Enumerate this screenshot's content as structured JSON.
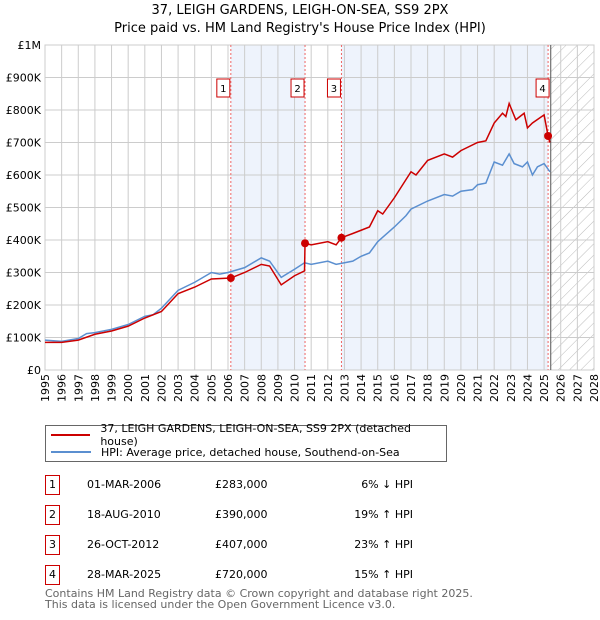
{
  "chart_data": {
    "type": "line",
    "title": "37, LEIGH GARDENS, LEIGH-ON-SEA, SS9 2PX",
    "subtitle": "Price paid vs. HM Land Registry's House Price Index (HPI)",
    "xlim": [
      1995,
      2028
    ],
    "ylim": [
      0,
      1000000
    ],
    "x_ticks": [
      "1995",
      "1996",
      "1997",
      "1998",
      "1999",
      "2000",
      "2001",
      "2002",
      "2003",
      "2004",
      "2005",
      "2006",
      "2007",
      "2008",
      "2009",
      "2010",
      "2011",
      "2012",
      "2013",
      "2014",
      "2015",
      "2016",
      "2017",
      "2018",
      "2019",
      "2020",
      "2021",
      "2022",
      "2023",
      "2024",
      "2025",
      "2026",
      "2027",
      "2028"
    ],
    "y_ticks": [
      {
        "v": 0,
        "label": "£0"
      },
      {
        "v": 100000,
        "label": "£100K"
      },
      {
        "v": 200000,
        "label": "£200K"
      },
      {
        "v": 300000,
        "label": "£300K"
      },
      {
        "v": 400000,
        "label": "£400K"
      },
      {
        "v": 500000,
        "label": "£500K"
      },
      {
        "v": 600000,
        "label": "£600K"
      },
      {
        "v": 700000,
        "label": "£700K"
      },
      {
        "v": 800000,
        "label": "£800K"
      },
      {
        "v": 900000,
        "label": "£900K"
      },
      {
        "v": 1000000,
        "label": "£1M"
      }
    ],
    "grid": true,
    "series": [
      {
        "name": "37, LEIGH GARDENS, LEIGH-ON-SEA, SS9 2PX (detached house)",
        "color": "#cc0000",
        "x": [
          1995,
          1996,
          1997,
          1998,
          1999,
          2000,
          2001,
          2002,
          2003,
          2004,
          2005,
          2006.17,
          2007,
          2008,
          2008.5,
          2009.2,
          2010,
          2010.6,
          2010.63,
          2011,
          2012,
          2012.5,
          2012.82,
          2013.5,
          2014,
          2014.5,
          2015,
          2015.3,
          2016,
          2016.5,
          2017,
          2017.3,
          2018,
          2019,
          2019.5,
          2020,
          2021,
          2021.5,
          2022,
          2022.5,
          2022.7,
          2022.9,
          2023.3,
          2023.8,
          2024,
          2024.3,
          2025,
          2025.24,
          2025.35
        ],
        "y": [
          85000,
          85000,
          92000,
          110000,
          120000,
          135000,
          160000,
          180000,
          235000,
          255000,
          280000,
          283000,
          300000,
          325000,
          320000,
          262000,
          290000,
          305000,
          390000,
          385000,
          395000,
          385000,
          407000,
          420000,
          430000,
          440000,
          490000,
          480000,
          530000,
          570000,
          610000,
          600000,
          645000,
          665000,
          655000,
          675000,
          700000,
          705000,
          760000,
          790000,
          780000,
          820000,
          770000,
          790000,
          745000,
          760000,
          785000,
          720000,
          700000
        ]
      },
      {
        "name": "HPI: Average price, detached house, Southend-on-Sea",
        "color": "#5b8fd0",
        "x": [
          1995,
          1996,
          1997,
          1997.5,
          1998,
          1999,
          2000,
          2001,
          2001.5,
          2002,
          2003,
          2004,
          2005,
          2005.5,
          2006,
          2007,
          2008,
          2008.5,
          2009.2,
          2010,
          2010.6,
          2011,
          2012,
          2012.5,
          2013,
          2013.5,
          2014,
          2014.5,
          2015,
          2016,
          2016.7,
          2017,
          2018,
          2019,
          2019.5,
          2020,
          2020.7,
          2021,
          2021.5,
          2022,
          2022.5,
          2022.9,
          2023.2,
          2023.7,
          2024,
          2024.3,
          2024.6,
          2025,
          2025.35
        ],
        "y": [
          92000,
          88000,
          97000,
          112000,
          115000,
          125000,
          140000,
          165000,
          170000,
          190000,
          245000,
          270000,
          300000,
          295000,
          300000,
          315000,
          345000,
          335000,
          285000,
          310000,
          330000,
          325000,
          335000,
          325000,
          330000,
          335000,
          350000,
          360000,
          395000,
          440000,
          475000,
          495000,
          520000,
          540000,
          535000,
          550000,
          555000,
          570000,
          575000,
          640000,
          630000,
          665000,
          635000,
          625000,
          640000,
          600000,
          625000,
          635000,
          610000
        ]
      }
    ],
    "sales": [
      {
        "n": "1",
        "x": 2006.17,
        "y": 283000
      },
      {
        "n": "2",
        "x": 2010.63,
        "y": 390000
      },
      {
        "n": "3",
        "x": 2012.82,
        "y": 407000
      },
      {
        "n": "4",
        "x": 2025.24,
        "y": 720000
      }
    ],
    "shaded_ranges": [
      [
        2006.17,
        2010.63
      ],
      [
        2012.82,
        2025.24
      ]
    ],
    "forecast_hatch_from": 2025.4,
    "legend": "below"
  },
  "table": [
    {
      "n": "1",
      "date": "01-MAR-2006",
      "price": "£283,000",
      "hpi": "6% ↓ HPI"
    },
    {
      "n": "2",
      "date": "18-AUG-2010",
      "price": "£390,000",
      "hpi": "19% ↑ HPI"
    },
    {
      "n": "3",
      "date": "26-OCT-2012",
      "price": "£407,000",
      "hpi": "23% ↑ HPI"
    },
    {
      "n": "4",
      "date": "28-MAR-2025",
      "price": "£720,000",
      "hpi": "15% ↑ HPI"
    }
  ],
  "footer": {
    "line1": "Contains HM Land Registry data © Crown copyright and database right 2025.",
    "line2": "This data is licensed under the Open Government Licence v3.0."
  }
}
